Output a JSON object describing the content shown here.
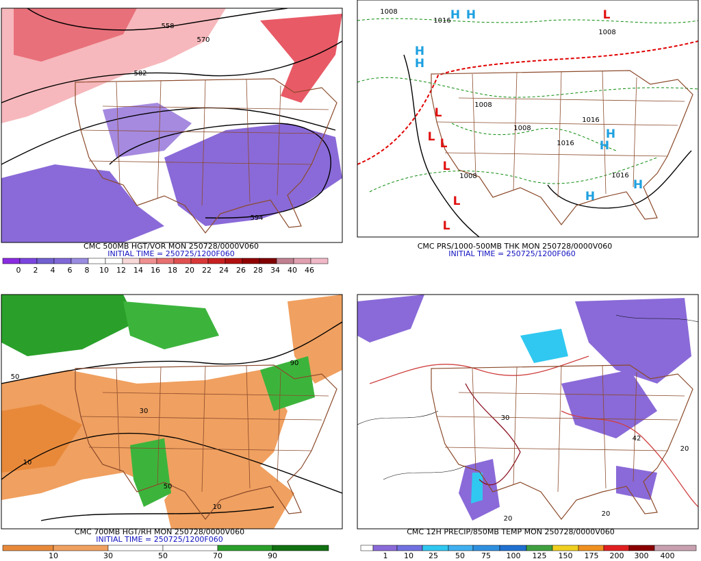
{
  "panels": [
    {
      "caption": "CMC 500MB HGT/VOR MON 250728/0000V060",
      "initial_time": "INITIAL TIME = 250725/1200F060",
      "colorbar": {
        "labels": [
          "0",
          "2",
          "4",
          "6",
          "8",
          "10",
          "12",
          "14",
          "16",
          "18",
          "20",
          "22",
          "24",
          "26",
          "28",
          "34",
          "40",
          "46"
        ]
      },
      "labels": [
        "558",
        "570",
        "582",
        "594"
      ]
    },
    {
      "caption": "CMC PRS/1000-500MB THK MON 250728/0000V060",
      "initial_time": "INITIAL TIME = 250725/1200F060",
      "labels": [
        "H",
        "H",
        "H",
        "H",
        "H",
        "H",
        "H",
        "H",
        "L",
        "L",
        "L",
        "L",
        "L",
        "L",
        "L",
        "1008",
        "1008",
        "1008",
        "1008",
        "1008",
        "1016",
        "1016",
        "1016",
        "1016"
      ]
    },
    {
      "caption": "CMC 700MB HGT/RH MON 250728/0000V060",
      "initial_time": "INITIAL TIME = 250725/1200F060",
      "colorbar": {
        "labels": [
          "10",
          "30",
          "50",
          "70",
          "90"
        ]
      },
      "labels": [
        "50",
        "10",
        "30",
        "50",
        "10",
        "90"
      ]
    },
    {
      "caption": "CMC 12H PRECIP/850MB TEMP MON 250728/0000V060",
      "colorbar": {
        "labels": [
          "1",
          "10",
          "25",
          "50",
          "75",
          "100",
          "125",
          "150",
          "175",
          "200",
          "300",
          "400"
        ]
      },
      "labels": [
        "20",
        "20",
        "30",
        "42",
        "20"
      ]
    }
  ]
}
